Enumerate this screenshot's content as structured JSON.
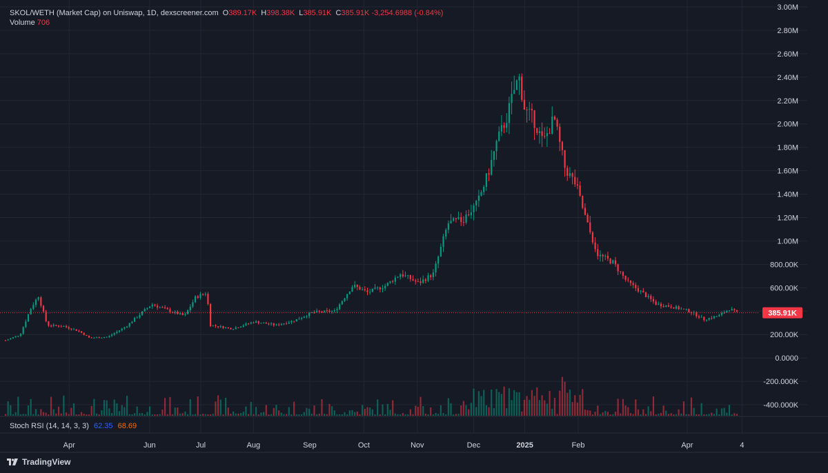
{
  "header": {
    "title": "SKOL/WETH (Market Cap) on Uniswap, 1D, dexscreener.com",
    "ohlc": [
      {
        "key": "O",
        "value": "389.17K"
      },
      {
        "key": "H",
        "value": "398.38K"
      },
      {
        "key": "L",
        "value": "385.91K"
      },
      {
        "key": "C",
        "value": "385.91K"
      }
    ],
    "change": "-3,254.6988 (-0.84%)",
    "volume_label": "Volume",
    "volume_value": "706"
  },
  "indicator": {
    "label": "Stoch RSI (14, 14, 3, 3)",
    "k": "62.35",
    "d": "68.69"
  },
  "brand": {
    "name": "TradingView"
  },
  "colors": {
    "background": "#161a25",
    "grid": "#232733",
    "up": "#089981",
    "down": "#f23645",
    "axis_text": "#d1d4dc",
    "price_label_bg": "#f23645"
  },
  "chart_data": {
    "type": "candlestick",
    "title": "SKOL/WETH (Market Cap) on Uniswap, 1D, dexscreener.com",
    "ylim": [
      -500000,
      3000000
    ],
    "y_ticks": [
      "3.00M",
      "2.80M",
      "2.60M",
      "2.40M",
      "2.20M",
      "2.00M",
      "1.80M",
      "1.60M",
      "1.40M",
      "1.20M",
      "1.00M",
      "800.00K",
      "600.00K",
      "400.00K",
      "200.00K",
      "0.0000",
      "-200.000K",
      "-400.000K"
    ],
    "y_tick_values": [
      3000000,
      2800000,
      2600000,
      2400000,
      2200000,
      2000000,
      1800000,
      1600000,
      1400000,
      1200000,
      1000000,
      800000,
      600000,
      400000,
      200000,
      0,
      -200000,
      -400000
    ],
    "x_ticks": [
      "Apr",
      "Jun",
      "Jul",
      "Aug",
      "Sep",
      "Oct",
      "Nov",
      "Dec",
      "2025",
      "Feb",
      "Apr",
      "4"
    ],
    "x_tick_positions": [
      0.087,
      0.197,
      0.267,
      0.339,
      0.416,
      0.49,
      0.563,
      0.64,
      0.71,
      0.783,
      0.932,
      1.007
    ],
    "last_price_label": "385.91K",
    "last_price": 385910,
    "series": [
      {
        "x": 0.0,
        "y": 150000
      },
      {
        "x": 0.02,
        "y": 200000
      },
      {
        "x": 0.035,
        "y": 430000
      },
      {
        "x": 0.045,
        "y": 530000
      },
      {
        "x": 0.057,
        "y": 280000
      },
      {
        "x": 0.08,
        "y": 270000
      },
      {
        "x": 0.1,
        "y": 230000
      },
      {
        "x": 0.115,
        "y": 170000
      },
      {
        "x": 0.14,
        "y": 180000
      },
      {
        "x": 0.165,
        "y": 270000
      },
      {
        "x": 0.185,
        "y": 380000
      },
      {
        "x": 0.2,
        "y": 460000
      },
      {
        "x": 0.225,
        "y": 400000
      },
      {
        "x": 0.245,
        "y": 360000
      },
      {
        "x": 0.26,
        "y": 520000
      },
      {
        "x": 0.275,
        "y": 560000
      },
      {
        "x": 0.28,
        "y": 280000
      },
      {
        "x": 0.31,
        "y": 250000
      },
      {
        "x": 0.34,
        "y": 310000
      },
      {
        "x": 0.37,
        "y": 280000
      },
      {
        "x": 0.395,
        "y": 320000
      },
      {
        "x": 0.42,
        "y": 390000
      },
      {
        "x": 0.45,
        "y": 400000
      },
      {
        "x": 0.475,
        "y": 620000
      },
      {
        "x": 0.495,
        "y": 560000
      },
      {
        "x": 0.52,
        "y": 620000
      },
      {
        "x": 0.54,
        "y": 720000
      },
      {
        "x": 0.565,
        "y": 640000
      },
      {
        "x": 0.585,
        "y": 720000
      },
      {
        "x": 0.605,
        "y": 1150000
      },
      {
        "x": 0.625,
        "y": 1180000
      },
      {
        "x": 0.645,
        "y": 1320000
      },
      {
        "x": 0.66,
        "y": 1580000
      },
      {
        "x": 0.672,
        "y": 1850000
      },
      {
        "x": 0.685,
        "y": 2050000
      },
      {
        "x": 0.696,
        "y": 2300000
      },
      {
        "x": 0.702,
        "y": 2400000
      },
      {
        "x": 0.71,
        "y": 2120000
      },
      {
        "x": 0.722,
        "y": 2040000
      },
      {
        "x": 0.735,
        "y": 1840000
      },
      {
        "x": 0.75,
        "y": 2050000
      },
      {
        "x": 0.765,
        "y": 1620000
      },
      {
        "x": 0.78,
        "y": 1480000
      },
      {
        "x": 0.795,
        "y": 1150000
      },
      {
        "x": 0.81,
        "y": 880000
      },
      {
        "x": 0.83,
        "y": 820000
      },
      {
        "x": 0.85,
        "y": 650000
      },
      {
        "x": 0.87,
        "y": 560000
      },
      {
        "x": 0.89,
        "y": 460000
      },
      {
        "x": 0.91,
        "y": 440000
      },
      {
        "x": 0.935,
        "y": 400000
      },
      {
        "x": 0.955,
        "y": 330000
      },
      {
        "x": 0.975,
        "y": 360000
      },
      {
        "x": 0.99,
        "y": 420000
      },
      {
        "x": 1.0,
        "y": 385910
      }
    ]
  }
}
